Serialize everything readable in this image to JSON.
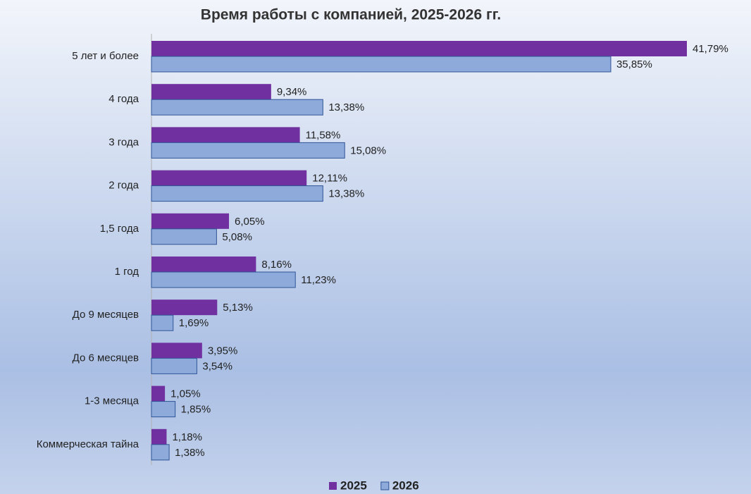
{
  "chart_data": {
    "type": "bar",
    "orientation": "horizontal",
    "title": "Время работы с компанией, 2025-2026 гг.",
    "categories": [
      "5 лет и более",
      "4 года",
      "3 года",
      "2 года",
      "1,5 года",
      "1 год",
      "До 9 месяцев",
      "До 6 месяцев",
      "1-3 месяца",
      "Коммерческая тайна"
    ],
    "series": [
      {
        "name": "2025",
        "color": "#7030a0",
        "values": [
          41.79,
          9.34,
          11.58,
          12.11,
          6.05,
          8.16,
          5.13,
          3.95,
          1.05,
          1.18
        ],
        "value_labels": [
          "41,79%",
          "9,34%",
          "11,58%",
          "12,11%",
          "6,05%",
          "8,16%",
          "5,13%",
          "3,95%",
          "1,05%",
          "1,18%"
        ]
      },
      {
        "name": "2026",
        "color": "#8eaadb",
        "values": [
          35.85,
          13.38,
          15.08,
          13.38,
          5.08,
          11.23,
          1.69,
          3.54,
          1.85,
          1.38
        ],
        "value_labels": [
          "35,85%",
          "13,38%",
          "15,08%",
          "13,38%",
          "5,08%",
          "11,23%",
          "1,69%",
          "3,54%",
          "1,85%",
          "1,38%"
        ]
      }
    ],
    "legend": "bottom"
  }
}
